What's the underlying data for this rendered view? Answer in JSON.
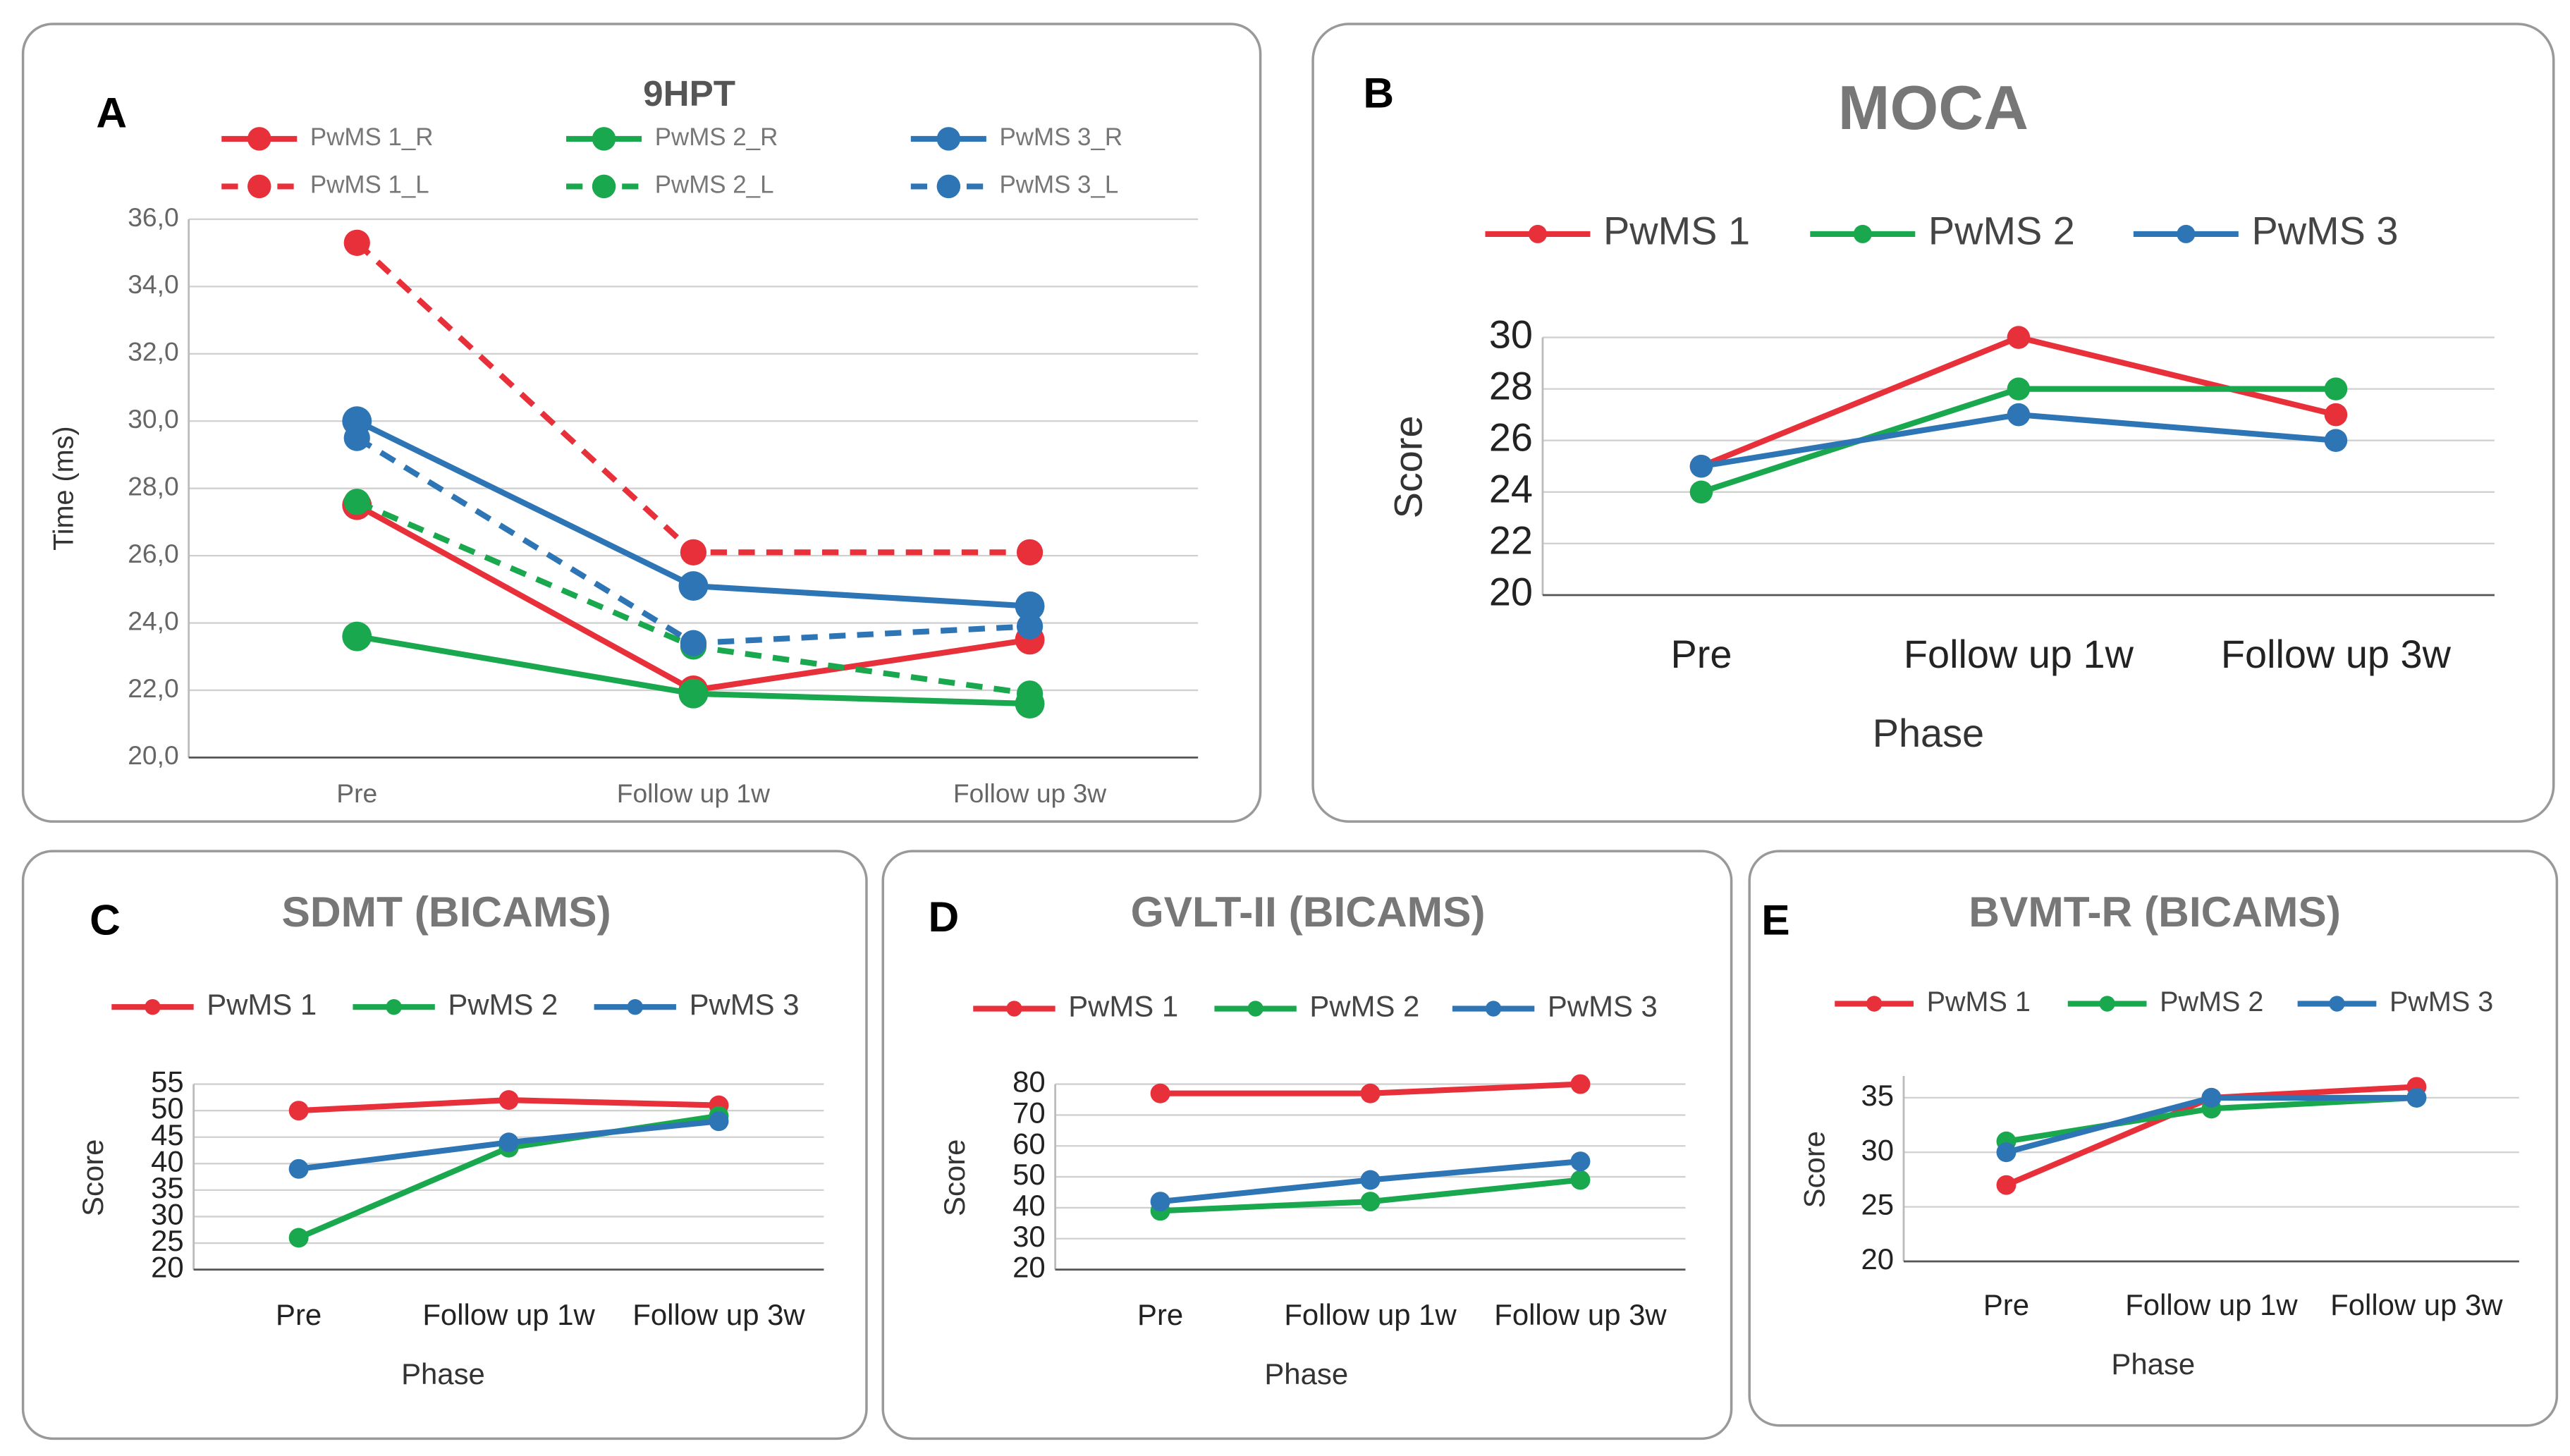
{
  "chart_data": [
    {
      "type": "line",
      "panel": "A",
      "title": "9HPT",
      "y_label": "Time (ms)",
      "categories": [
        "Pre",
        "Follow up 1w",
        "Follow up 3w"
      ],
      "ylim": [
        20,
        36
      ],
      "yticks": [
        {
          "value": 20,
          "label": "20,0"
        },
        {
          "value": 22,
          "label": "22,0"
        },
        {
          "value": 24,
          "label": "24,0"
        },
        {
          "value": 26,
          "label": "26,0"
        },
        {
          "value": 28,
          "label": "28,0"
        },
        {
          "value": 30,
          "label": "30,0"
        },
        {
          "value": 32,
          "label": "32,0"
        },
        {
          "value": 34,
          "label": "34,0"
        },
        {
          "value": 36,
          "label": "36,0"
        }
      ],
      "grid": true,
      "series": [
        {
          "name": "PwMS 1_R",
          "color": "#e8303a",
          "dashed": false,
          "values": [
            27.5,
            22.0,
            23.5
          ]
        },
        {
          "name": "PwMS 2_R",
          "color": "#1aa84f",
          "dashed": false,
          "values": [
            23.6,
            21.9,
            21.6
          ]
        },
        {
          "name": "PwMS 3_R",
          "color": "#2e75b6",
          "dashed": false,
          "values": [
            30.0,
            25.1,
            24.5
          ]
        },
        {
          "name": "PwMS 1_L",
          "color": "#e8303a",
          "dashed": true,
          "values": [
            35.3,
            26.1,
            26.1
          ]
        },
        {
          "name": "PwMS 2_L",
          "color": "#1aa84f",
          "dashed": true,
          "values": [
            27.6,
            23.3,
            21.9
          ]
        },
        {
          "name": "PwMS 3_L",
          "color": "#2e75b6",
          "dashed": true,
          "values": [
            29.5,
            23.4,
            23.9
          ]
        }
      ]
    },
    {
      "type": "line",
      "panel": "B",
      "title": "MOCA",
      "y_label": "Score",
      "x_label": "Phase",
      "categories": [
        "Pre",
        "Follow up 1w",
        "Follow up 3w"
      ],
      "ylim": [
        20,
        30
      ],
      "yticks": [
        20,
        22,
        24,
        26,
        28,
        30
      ],
      "grid": true,
      "series": [
        {
          "name": "PwMS 1",
          "color": "#e8303a",
          "values": [
            25,
            30,
            27
          ]
        },
        {
          "name": "PwMS 2",
          "color": "#1aa84f",
          "values": [
            24,
            28,
            28
          ]
        },
        {
          "name": "PwMS 3",
          "color": "#2e75b6",
          "values": [
            25,
            27,
            26
          ]
        }
      ]
    },
    {
      "type": "line",
      "panel": "C",
      "title": "SDMT (BICAMS)",
      "y_label": "Score",
      "x_label": "Phase",
      "categories": [
        "Pre",
        "Follow up 1w",
        "Follow up 3w"
      ],
      "ylim": [
        20,
        55
      ],
      "yticks": [
        20,
        25,
        30,
        35,
        40,
        45,
        50,
        55
      ],
      "grid": true,
      "series": [
        {
          "name": "PwMS 1",
          "color": "#e8303a",
          "values": [
            50,
            52,
            51
          ]
        },
        {
          "name": "PwMS 2",
          "color": "#1aa84f",
          "values": [
            26,
            43,
            49
          ]
        },
        {
          "name": "PwMS 3",
          "color": "#2e75b6",
          "values": [
            39,
            44,
            48
          ]
        }
      ]
    },
    {
      "type": "line",
      "panel": "D",
      "title": "GVLT-II (BICAMS)",
      "y_label": "Score",
      "x_label": "Phase",
      "categories": [
        "Pre",
        "Follow up 1w",
        "Follow up 3w"
      ],
      "ylim": [
        20,
        80
      ],
      "yticks": [
        20,
        30,
        40,
        50,
        60,
        70,
        80
      ],
      "grid": true,
      "series": [
        {
          "name": "PwMS 1",
          "color": "#e8303a",
          "values": [
            77,
            77,
            80
          ]
        },
        {
          "name": "PwMS 2",
          "color": "#1aa84f",
          "values": [
            39,
            42,
            49
          ]
        },
        {
          "name": "PwMS 3",
          "color": "#2e75b6",
          "values": [
            42,
            49,
            55
          ]
        }
      ]
    },
    {
      "type": "line",
      "panel": "E",
      "title": "BVMT-R (BICAMS)",
      "y_label": "Score",
      "x_label": "Phase",
      "categories": [
        "Pre",
        "Follow up 1w",
        "Follow up 3w"
      ],
      "ylim": [
        20,
        37
      ],
      "yticks": [
        20,
        25,
        30,
        35
      ],
      "grid": true,
      "series": [
        {
          "name": "PwMS 1",
          "color": "#e8303a",
          "values": [
            27,
            35,
            36
          ]
        },
        {
          "name": "PwMS 2",
          "color": "#1aa84f",
          "values": [
            31,
            34,
            35
          ]
        },
        {
          "name": "PwMS 3",
          "color": "#2e75b6",
          "values": [
            30,
            35,
            35
          ]
        }
      ]
    }
  ]
}
